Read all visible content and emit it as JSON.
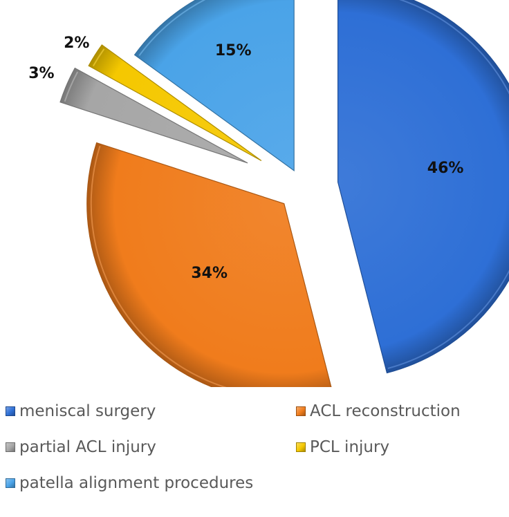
{
  "chart_data": {
    "type": "pie",
    "title": "",
    "exploded": true,
    "style": "3d-beveled",
    "slices": [
      {
        "name": "meniscal surgery",
        "value": 46,
        "label": "46%",
        "color": "#2e6fd6"
      },
      {
        "name": "ACL reconstruction",
        "value": 34,
        "label": "34%",
        "color": "#f07c1c"
      },
      {
        "name": "partial ACL injury",
        "value": 3,
        "label": "3%",
        "color": "#a6a6a6"
      },
      {
        "name": "PCL injury",
        "value": 2,
        "label": "2%",
        "color": "#f5c800"
      },
      {
        "name": "patella alignment procedures",
        "value": 15,
        "label": "15%",
        "color": "#4aa3e8"
      }
    ],
    "legend": {
      "position": "bottom",
      "entries": [
        "meniscal surgery",
        "ACL reconstruction",
        "partial ACL injury",
        "PCL injury",
        "patella alignment procedures"
      ]
    }
  }
}
